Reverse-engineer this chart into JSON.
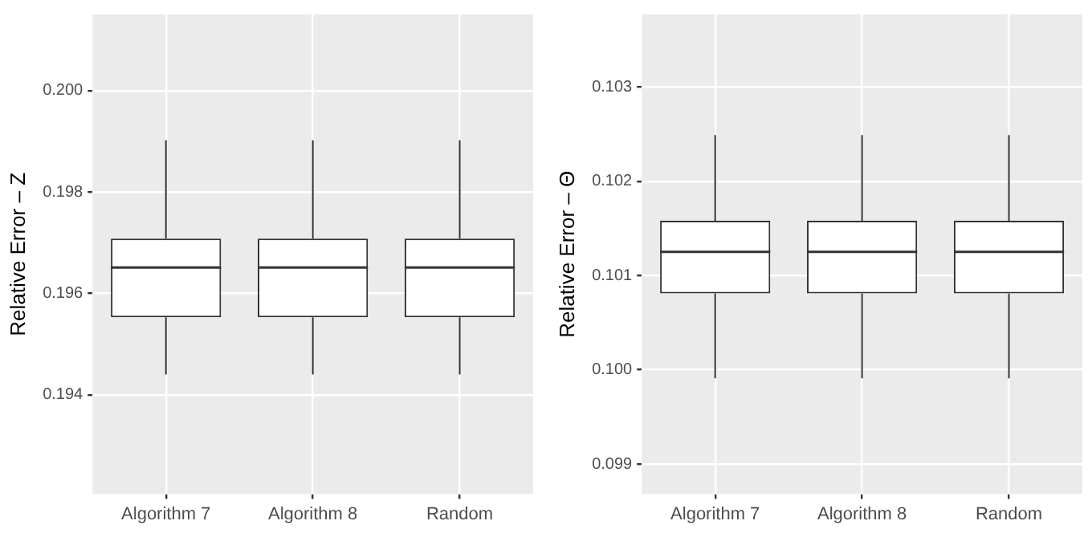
{
  "chart_data": [
    {
      "type": "box",
      "ylabel": "Relative Error – Z",
      "categories": [
        "Algorithm 7",
        "Algorithm 8",
        "Random"
      ],
      "boxes": [
        {
          "low": 0.1944,
          "q1": 0.19553,
          "median": 0.19651,
          "q3": 0.19708,
          "high": 0.19902
        },
        {
          "low": 0.1944,
          "q1": 0.19553,
          "median": 0.19651,
          "q3": 0.19708,
          "high": 0.19902
        },
        {
          "low": 0.1944,
          "q1": 0.19553,
          "median": 0.19651,
          "q3": 0.19708,
          "high": 0.19902
        }
      ],
      "ylim": [
        0.19204,
        0.2015
      ],
      "yticks": [
        0.194,
        0.196,
        0.198,
        {
          "value": 0.2,
          "label": "0.200"
        }
      ],
      "grid": true
    },
    {
      "type": "box",
      "ylabel": "Relative Error – Θ",
      "categories": [
        "Algorithm 7",
        "Algorithm 8",
        "Random"
      ],
      "boxes": [
        {
          "low": 0.09991,
          "q1": 0.10081,
          "median": 0.10125,
          "q3": 0.10158,
          "high": 0.10249
        },
        {
          "low": 0.09991,
          "q1": 0.10081,
          "median": 0.10125,
          "q3": 0.10158,
          "high": 0.10249
        },
        {
          "low": 0.09991,
          "q1": 0.10081,
          "median": 0.10125,
          "q3": 0.10158,
          "high": 0.10249
        }
      ],
      "ylim": [
        0.09868,
        0.10377
      ],
      "yticks": [
        0.099,
        {
          "value": 0.1,
          "label": "0.100"
        },
        0.101,
        0.102,
        0.103
      ],
      "grid": true
    }
  ]
}
